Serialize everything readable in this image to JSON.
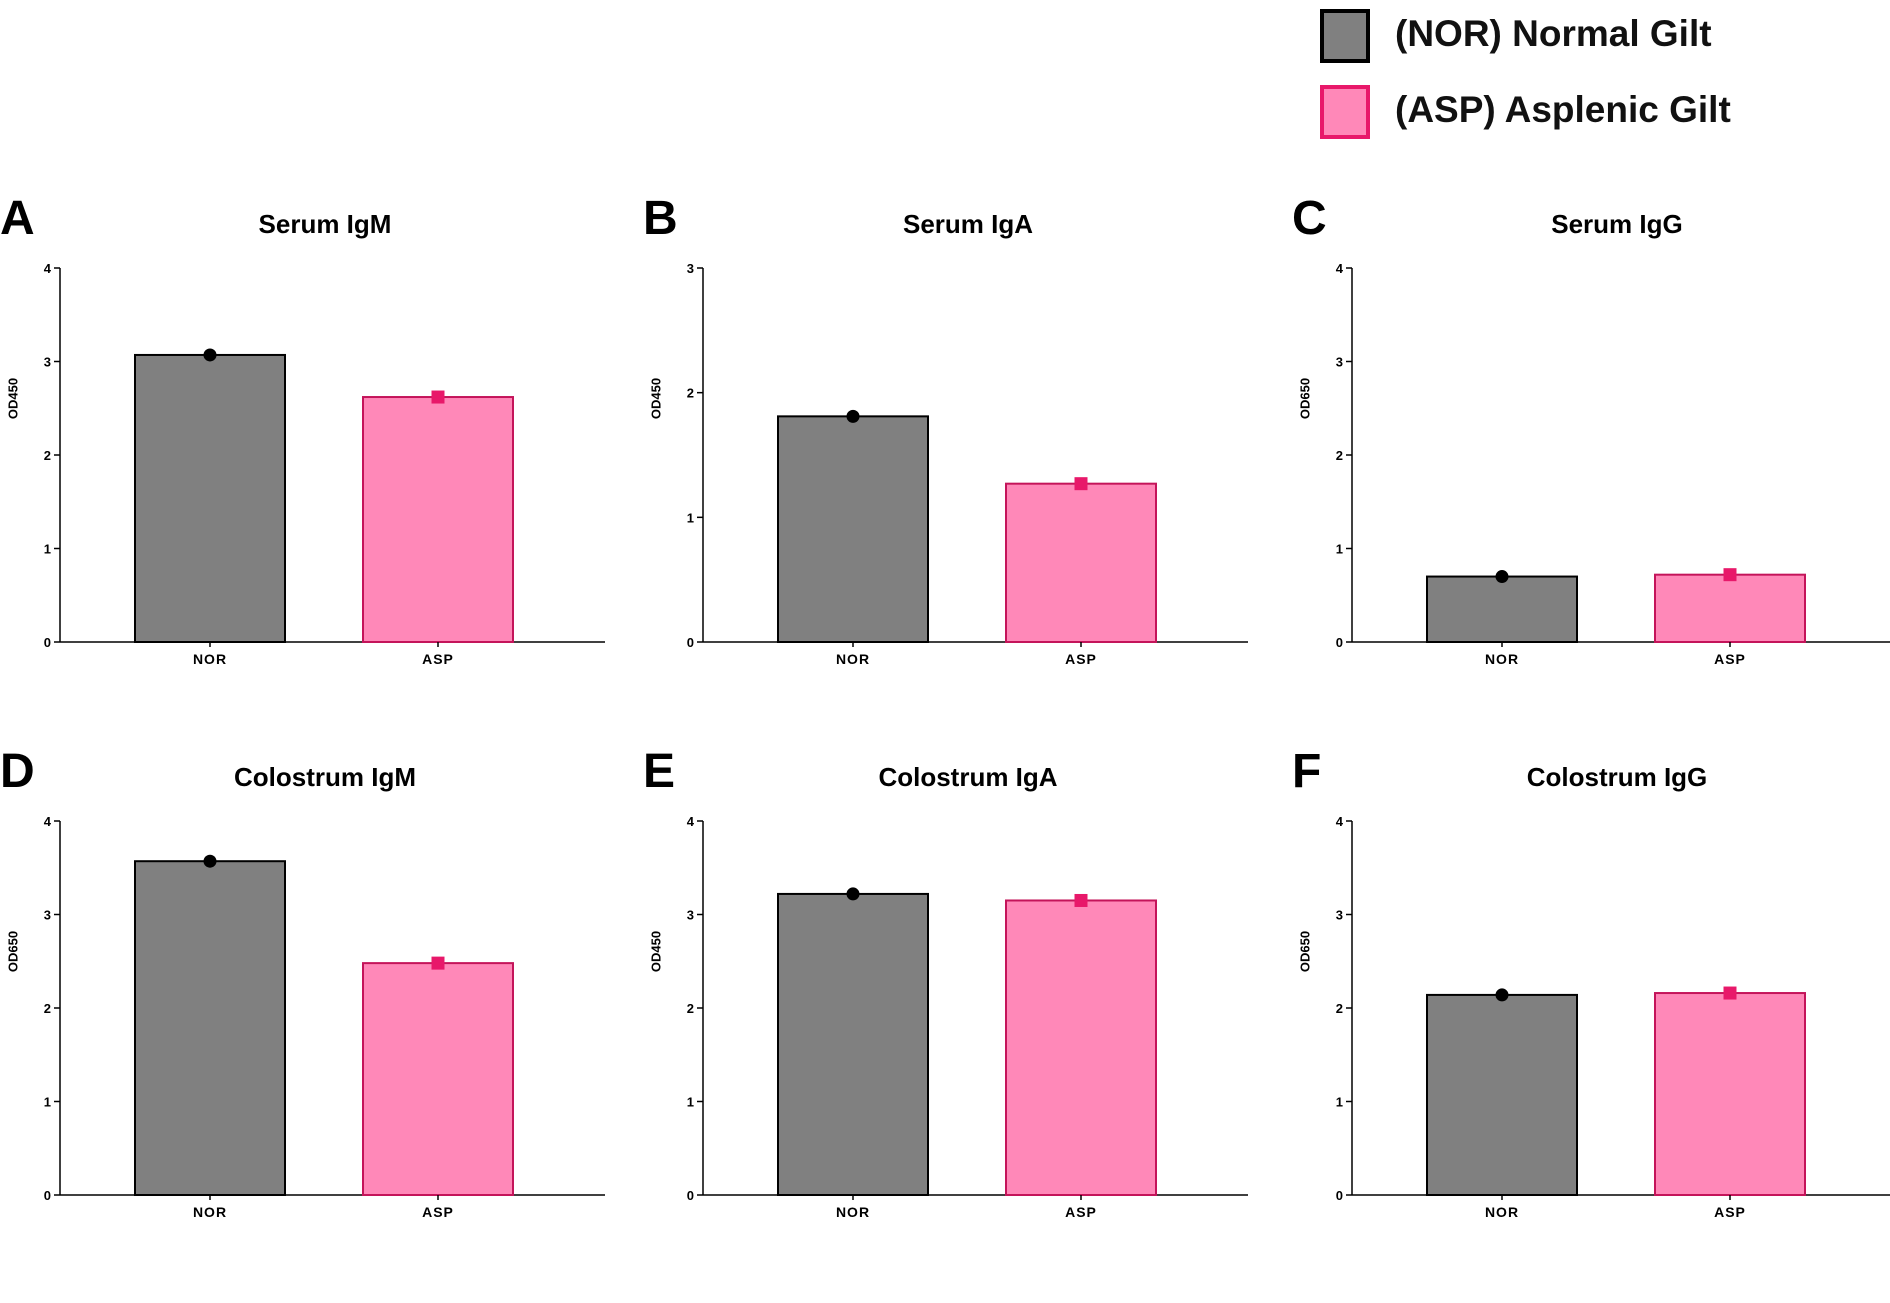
{
  "legend": {
    "items": [
      {
        "label": "(NOR) Normal Gilt",
        "fill": "#808080",
        "border": "#000000"
      },
      {
        "label": "(ASP) Asplenic Gilt",
        "fill": "#ff88b8",
        "border": "#e8186a"
      }
    ]
  },
  "colors": {
    "nor_fill": "#808080",
    "nor_border": "#000000",
    "nor_marker": "#000000",
    "asp_fill": "#ff88b8",
    "asp_border": "#c4145a",
    "asp_marker": "#e8186a",
    "axis": "#000000"
  },
  "chart_data": [
    {
      "panel": "A",
      "type": "bar",
      "title": "Serum IgM",
      "ylabel": "OD450",
      "ylim": [
        0,
        4
      ],
      "yticks": [
        "0",
        "1",
        "2",
        "3",
        "4"
      ],
      "categories": [
        "NOR",
        "ASP"
      ],
      "values": [
        3.07,
        2.62
      ]
    },
    {
      "panel": "B",
      "type": "bar",
      "title": "Serum IgA",
      "ylabel": "OD450",
      "ylim": [
        0,
        3
      ],
      "yticks": [
        "0",
        "1",
        "2",
        "3"
      ],
      "categories": [
        "NOR",
        "ASP"
      ],
      "values": [
        1.81,
        1.27
      ]
    },
    {
      "panel": "C",
      "type": "bar",
      "title": "Serum IgG",
      "ylabel": "OD650",
      "ylim": [
        0,
        4
      ],
      "yticks": [
        "0",
        "1",
        "2",
        "3",
        "4"
      ],
      "categories": [
        "NOR",
        "ASP"
      ],
      "values": [
        0.7,
        0.72
      ]
    },
    {
      "panel": "D",
      "type": "bar",
      "title": "Colostrum IgM",
      "ylabel": "OD650",
      "ylim": [
        0,
        4
      ],
      "yticks": [
        "0",
        "1",
        "2",
        "3",
        "4"
      ],
      "categories": [
        "NOR",
        "ASP"
      ],
      "values": [
        3.57,
        2.48
      ]
    },
    {
      "panel": "E",
      "type": "bar",
      "title": "Colostrum IgA",
      "ylabel": "OD450",
      "ylim": [
        0,
        4
      ],
      "yticks": [
        "0",
        "1",
        "2",
        "3",
        "4"
      ],
      "categories": [
        "NOR",
        "ASP"
      ],
      "values": [
        3.22,
        3.15
      ]
    },
    {
      "panel": "F",
      "type": "bar",
      "title": "Colostrum IgG",
      "ylabel": "OD650",
      "ylim": [
        0,
        4
      ],
      "yticks": [
        "0",
        "1",
        "2",
        "3",
        "4"
      ],
      "categories": [
        "NOR",
        "ASP"
      ],
      "values": [
        2.14,
        2.16
      ]
    }
  ]
}
